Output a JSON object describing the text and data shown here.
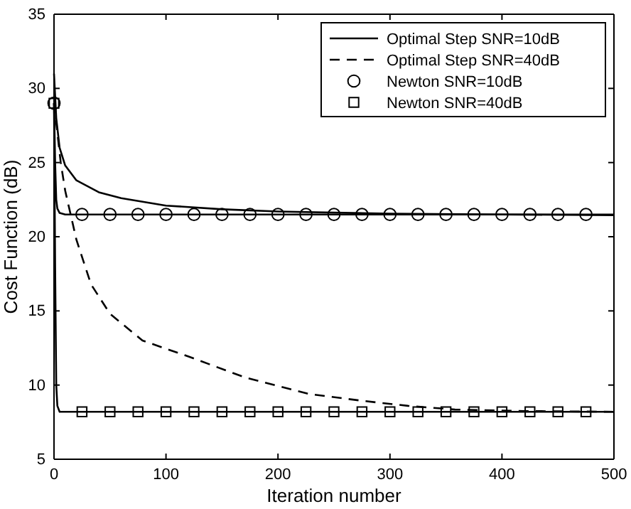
{
  "chart_data": {
    "type": "line",
    "xlabel": "Iteration number",
    "ylabel": "Cost Function (dB)",
    "xlim": [
      0,
      500
    ],
    "ylim": [
      5,
      35
    ],
    "xticks": [
      0,
      100,
      200,
      300,
      400,
      500
    ],
    "yticks": [
      5,
      10,
      15,
      20,
      25,
      30,
      35
    ],
    "grid": false,
    "legend": "top right",
    "series": [
      {
        "name": "Optimal Step SNR=10dB",
        "color": "#000000",
        "line_style": "solid",
        "marker": "none",
        "x": [
          0,
          1,
          2,
          5,
          10,
          20,
          40,
          60,
          100,
          150,
          200,
          300,
          400,
          500
        ],
        "values": [
          31,
          29.5,
          28,
          26,
          24.8,
          23.8,
          23,
          22.6,
          22.1,
          21.85,
          21.7,
          21.55,
          21.5,
          21.45
        ]
      },
      {
        "name": "Optimal Step SNR=40dB",
        "color": "#000000",
        "line_style": "dashed",
        "marker": "none",
        "x": [
          0,
          3,
          6,
          10,
          20,
          33,
          50,
          79,
          121,
          171,
          228,
          274,
          316,
          358,
          420,
          500
        ],
        "values": [
          29,
          27,
          25,
          23.1,
          19.8,
          16.8,
          14.8,
          13,
          11.9,
          10.5,
          9.4,
          8.95,
          8.6,
          8.35,
          8.25,
          8.2
        ]
      },
      {
        "color": "#000000",
        "line_style": "solid",
        "marker": "none",
        "x": [
          0,
          1,
          2,
          3,
          5,
          10,
          500
        ],
        "values": [
          29,
          25,
          22.5,
          21.9,
          21.6,
          21.5,
          21.5
        ]
      },
      {
        "color": "#000000",
        "line_style": "solid",
        "marker": "none",
        "x": [
          0,
          1,
          2,
          3,
          5,
          500
        ],
        "values": [
          29,
          18,
          10,
          8.6,
          8.2,
          8.2
        ]
      },
      {
        "name": "Newton SNR=10dB",
        "type": "scatter",
        "color": "#000000",
        "marker": "circle",
        "x": [
          0,
          25,
          50,
          75,
          100,
          125,
          150,
          175,
          200,
          225,
          250,
          275,
          300,
          325,
          350,
          375,
          400,
          425,
          450,
          475
        ],
        "values": [
          29,
          21.5,
          21.5,
          21.5,
          21.5,
          21.5,
          21.5,
          21.5,
          21.5,
          21.5,
          21.5,
          21.5,
          21.5,
          21.5,
          21.5,
          21.5,
          21.5,
          21.5,
          21.5,
          21.5
        ]
      },
      {
        "name": "Newton SNR=40dB",
        "type": "scatter",
        "color": "#000000",
        "marker": "square",
        "x": [
          0,
          25,
          50,
          75,
          100,
          125,
          150,
          175,
          200,
          225,
          250,
          275,
          300,
          325,
          350,
          375,
          400,
          425,
          450,
          475
        ],
        "values": [
          29,
          8.2,
          8.2,
          8.2,
          8.2,
          8.2,
          8.2,
          8.2,
          8.2,
          8.2,
          8.2,
          8.2,
          8.2,
          8.2,
          8.2,
          8.2,
          8.2,
          8.2,
          8.2,
          8.2
        ]
      }
    ]
  }
}
